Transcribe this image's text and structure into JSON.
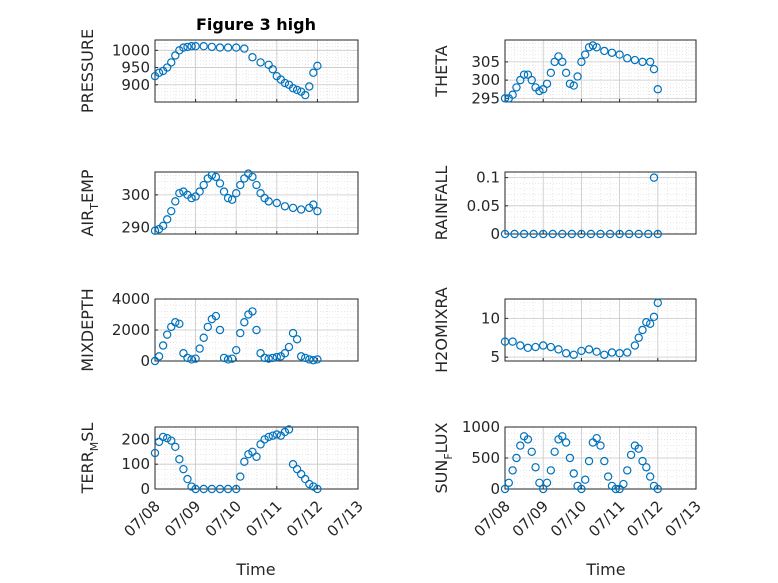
{
  "figure_title": "Figure 3 high",
  "x_axis_label": "Time",
  "x_tick_labels": [
    "07/08",
    "07/09",
    "07/10",
    "07/11",
    "07/12",
    "07/13"
  ],
  "colors": {
    "marker": "#0072BD",
    "axis": "#262626",
    "grid": "#d9d9d9"
  },
  "chart_data": [
    {
      "type": "scatter",
      "panel": "pressure",
      "ylabel": {
        "main": "PRESSURE",
        "sub": "",
        "tail": ""
      },
      "xlim": [
        0,
        5
      ],
      "ylim": [
        850,
        1030
      ],
      "yticks": [
        900,
        950,
        1000
      ],
      "x": [
        0,
        0.1,
        0.2,
        0.3,
        0.4,
        0.5,
        0.6,
        0.7,
        0.8,
        0.9,
        1.0,
        1.2,
        1.4,
        1.6,
        1.8,
        2.0,
        2.2,
        2.4,
        2.6,
        2.8,
        2.9,
        3.0,
        3.1,
        3.2,
        3.3,
        3.4,
        3.5,
        3.6,
        3.7,
        3.8,
        3.9,
        4.0
      ],
      "y": [
        925,
        935,
        940,
        950,
        965,
        985,
        1000,
        1008,
        1010,
        1012,
        1012,
        1012,
        1010,
        1008,
        1008,
        1008,
        1005,
        980,
        965,
        958,
        945,
        925,
        915,
        905,
        900,
        890,
        885,
        880,
        870,
        895,
        935,
        955
      ]
    },
    {
      "type": "scatter",
      "panel": "theta",
      "ylabel": {
        "main": "THETA",
        "sub": "",
        "tail": ""
      },
      "xlim": [
        0,
        5
      ],
      "ylim": [
        294,
        311
      ],
      "yticks": [
        295,
        300,
        305
      ],
      "x": [
        0,
        0.1,
        0.2,
        0.3,
        0.4,
        0.5,
        0.6,
        0.7,
        0.8,
        0.9,
        1.0,
        1.1,
        1.2,
        1.3,
        1.4,
        1.5,
        1.6,
        1.7,
        1.8,
        1.9,
        2.0,
        2.1,
        2.2,
        2.3,
        2.4,
        2.6,
        2.8,
        3.0,
        3.2,
        3.4,
        3.6,
        3.8,
        3.9,
        4.0
      ],
      "y": [
        295,
        295,
        296,
        298,
        300,
        301.5,
        301.5,
        300,
        298,
        297,
        297.5,
        299,
        302,
        305,
        306.5,
        305,
        302,
        299,
        298.5,
        301,
        305,
        307,
        309,
        309.5,
        309,
        308,
        307.5,
        307,
        306,
        305.5,
        305,
        305,
        303,
        297.5
      ]
    },
    {
      "type": "scatter",
      "panel": "air-temp",
      "ylabel": {
        "main": "AIR",
        "sub": "T",
        "tail": "EMP"
      },
      "xlim": [
        0,
        5
      ],
      "ylim": [
        288,
        307
      ],
      "yticks": [
        290,
        300
      ],
      "x": [
        0,
        0.1,
        0.2,
        0.3,
        0.4,
        0.5,
        0.6,
        0.7,
        0.8,
        0.9,
        1.0,
        1.1,
        1.2,
        1.3,
        1.4,
        1.5,
        1.6,
        1.7,
        1.8,
        1.9,
        2.0,
        2.1,
        2.2,
        2.3,
        2.4,
        2.5,
        2.6,
        2.7,
        2.8,
        3.0,
        3.2,
        3.4,
        3.6,
        3.8,
        3.9,
        4.0
      ],
      "y": [
        289,
        289.5,
        290.5,
        292.5,
        295,
        298,
        300.5,
        301,
        300,
        299,
        299.5,
        301,
        303,
        305,
        306,
        305.5,
        303.5,
        301,
        299,
        298.5,
        300.5,
        303,
        305,
        306.5,
        305.5,
        303,
        300.5,
        299,
        298,
        297.5,
        296.5,
        296,
        295.5,
        296,
        297,
        295
      ]
    },
    {
      "type": "scatter",
      "panel": "rainfall",
      "ylabel": {
        "main": "RAINFALL",
        "sub": "",
        "tail": ""
      },
      "xlim": [
        0,
        5
      ],
      "ylim": [
        0,
        0.11
      ],
      "yticks": [
        0,
        0.05,
        0.1
      ],
      "x": [
        0,
        0.25,
        0.5,
        0.75,
        1.0,
        1.25,
        1.5,
        1.75,
        2.0,
        2.25,
        2.5,
        2.75,
        3.0,
        3.25,
        3.5,
        3.75,
        3.9,
        4.0
      ],
      "y": [
        0,
        0,
        0,
        0,
        0,
        0,
        0,
        0,
        0,
        0,
        0,
        0,
        0,
        0,
        0,
        0,
        0.1,
        0
      ]
    },
    {
      "type": "scatter",
      "panel": "mixdepth",
      "ylabel": {
        "main": "MIXDEPTH",
        "sub": "",
        "tail": ""
      },
      "xlim": [
        0,
        5
      ],
      "ylim": [
        0,
        4000
      ],
      "yticks": [
        0,
        2000,
        4000
      ],
      "x": [
        0,
        0.1,
        0.2,
        0.3,
        0.4,
        0.5,
        0.6,
        0.7,
        0.8,
        0.9,
        1.0,
        1.1,
        1.2,
        1.3,
        1.4,
        1.5,
        1.6,
        1.7,
        1.8,
        1.9,
        2.0,
        2.1,
        2.2,
        2.3,
        2.4,
        2.5,
        2.6,
        2.7,
        2.8,
        2.9,
        3.0,
        3.1,
        3.2,
        3.3,
        3.4,
        3.5,
        3.6,
        3.7,
        3.8,
        3.9,
        4.0
      ],
      "y": [
        0,
        300,
        1000,
        1700,
        2200,
        2500,
        2400,
        500,
        200,
        100,
        150,
        800,
        1500,
        2200,
        2700,
        2900,
        2000,
        200,
        100,
        150,
        700,
        1800,
        2500,
        3000,
        3200,
        2000,
        500,
        200,
        150,
        200,
        250,
        300,
        500,
        900,
        1800,
        1400,
        300,
        200,
        100,
        50,
        100
      ]
    },
    {
      "type": "scatter",
      "panel": "h2omixra",
      "ylabel": {
        "main": "H2OMIXRA",
        "sub": "",
        "tail": ""
      },
      "xlim": [
        0,
        5
      ],
      "ylim": [
        4.5,
        12.5
      ],
      "yticks": [
        5,
        10
      ],
      "x": [
        0,
        0.2,
        0.4,
        0.6,
        0.8,
        1.0,
        1.2,
        1.4,
        1.6,
        1.8,
        2.0,
        2.2,
        2.4,
        2.6,
        2.8,
        3.0,
        3.2,
        3.4,
        3.5,
        3.6,
        3.7,
        3.8,
        3.9,
        4.0
      ],
      "y": [
        7,
        7,
        6.5,
        6.2,
        6.3,
        6.5,
        6.3,
        6,
        5.5,
        5.3,
        5.8,
        6,
        5.7,
        5.3,
        5.6,
        5.5,
        5.6,
        6.5,
        7.5,
        8.5,
        9.5,
        9.3,
        10.2,
        12
      ]
    },
    {
      "type": "scatter",
      "panel": "terr-msl",
      "ylabel": {
        "main": "TERR",
        "sub": "M",
        "tail": "SL"
      },
      "xlim": [
        0,
        5
      ],
      "ylim": [
        0,
        250
      ],
      "yticks": [
        0,
        100,
        200
      ],
      "x": [
        0,
        0.1,
        0.2,
        0.3,
        0.4,
        0.5,
        0.6,
        0.7,
        0.8,
        0.9,
        1.0,
        1.2,
        1.4,
        1.6,
        1.8,
        2.0,
        2.1,
        2.2,
        2.3,
        2.4,
        2.5,
        2.6,
        2.7,
        2.8,
        2.9,
        3.0,
        3.1,
        3.2,
        3.3,
        3.4,
        3.5,
        3.6,
        3.7,
        3.8,
        3.9,
        4.0
      ],
      "y": [
        145,
        190,
        210,
        205,
        195,
        170,
        120,
        80,
        40,
        10,
        0,
        0,
        0,
        0,
        0,
        0,
        50,
        110,
        140,
        150,
        130,
        180,
        200,
        210,
        215,
        220,
        215,
        230,
        240,
        100,
        80,
        60,
        40,
        20,
        10,
        0
      ]
    },
    {
      "type": "scatter",
      "panel": "sun-flux",
      "ylabel": {
        "main": "SUN",
        "sub": "F",
        "tail": "LUX"
      },
      "xlim": [
        0,
        5
      ],
      "ylim": [
        0,
        1000
      ],
      "yticks": [
        0,
        500,
        1000
      ],
      "x": [
        0,
        0.1,
        0.2,
        0.3,
        0.4,
        0.5,
        0.6,
        0.7,
        0.8,
        0.9,
        1.0,
        1.1,
        1.2,
        1.3,
        1.4,
        1.5,
        1.6,
        1.7,
        1.8,
        1.9,
        2.0,
        2.1,
        2.2,
        2.3,
        2.4,
        2.5,
        2.6,
        2.7,
        2.8,
        2.9,
        3.0,
        3.1,
        3.2,
        3.3,
        3.4,
        3.5,
        3.6,
        3.7,
        3.8,
        3.9,
        4.0
      ],
      "y": [
        0,
        100,
        300,
        500,
        700,
        850,
        800,
        600,
        350,
        100,
        0,
        100,
        300,
        600,
        800,
        850,
        750,
        500,
        250,
        50,
        0,
        150,
        450,
        750,
        820,
        700,
        450,
        200,
        50,
        0,
        0,
        80,
        300,
        550,
        700,
        650,
        450,
        350,
        200,
        50,
        0
      ]
    }
  ]
}
